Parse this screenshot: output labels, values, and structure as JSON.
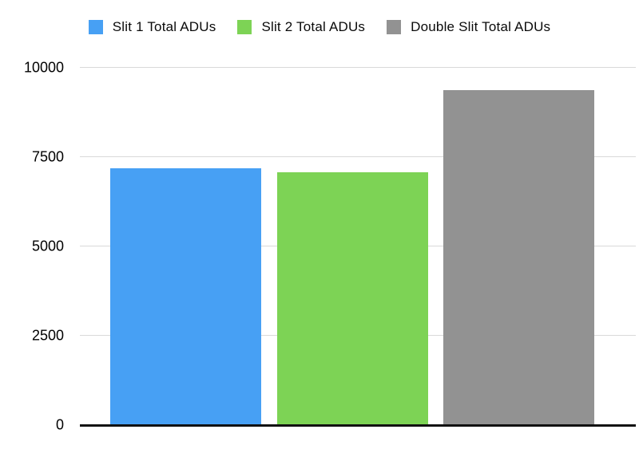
{
  "chart_data": {
    "type": "bar",
    "title": "",
    "xlabel": "",
    "ylabel": "",
    "ylim": [
      0,
      10000
    ],
    "yticks": [
      0,
      2500,
      5000,
      7500,
      10000
    ],
    "ytick_labels": [
      "0",
      "2500",
      "5000",
      "7500",
      "10000"
    ],
    "grid": true,
    "legend_position": "top",
    "background_color": "#ffffff",
    "gridline_color": "#d9d9d9",
    "axis_color": "#111111",
    "series": [
      {
        "name": "Slit 1 Total ADUs",
        "value": 7180,
        "color": "#47A0F4"
      },
      {
        "name": "Slit 2 Total ADUs",
        "value": 7070,
        "color": "#7DD355"
      },
      {
        "name": "Double Slit Total ADUs",
        "value": 9380,
        "color": "#929292"
      }
    ]
  }
}
